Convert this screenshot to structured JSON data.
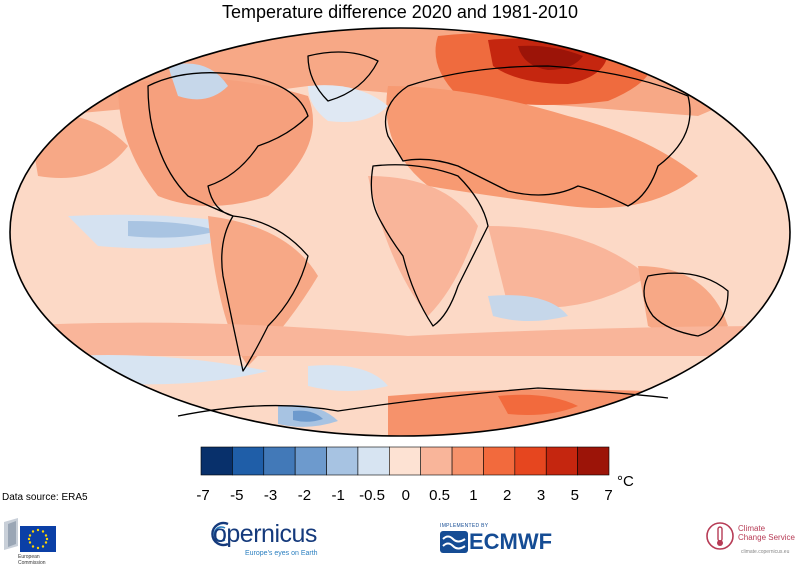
{
  "title": "Temperature difference 2020 and 1981-2010",
  "colorbar": {
    "ticks": [
      "-7",
      "-5",
      "-3",
      "-2",
      "-1",
      "-0.5",
      "0",
      "0.5",
      "1",
      "2",
      "3",
      "5",
      "7"
    ],
    "colors": [
      "#08306b",
      "#1f5ea8",
      "#4279b8",
      "#6d9acd",
      "#a7c3e2",
      "#d7e4f2",
      "#fde2d3",
      "#f9b59a",
      "#f6926b",
      "#f26a3d",
      "#e6461f",
      "#c5260f",
      "#9c1408"
    ],
    "unit": "°C"
  },
  "source": "Data source: ERA5",
  "logos": {
    "european_commission": {
      "icon": "eu-flag-icon",
      "text": [
        "European",
        "Commission"
      ]
    },
    "copernicus": {
      "word": "opernicus",
      "tagline": "Europe's eyes on Earth"
    },
    "ecmwf": {
      "implemented_by": "IMPLEMENTED BY",
      "word": "ECMWF"
    },
    "c3s": {
      "line1": "Climate",
      "line2": "Change Service",
      "url": "climate.copernicus.eu"
    }
  }
}
